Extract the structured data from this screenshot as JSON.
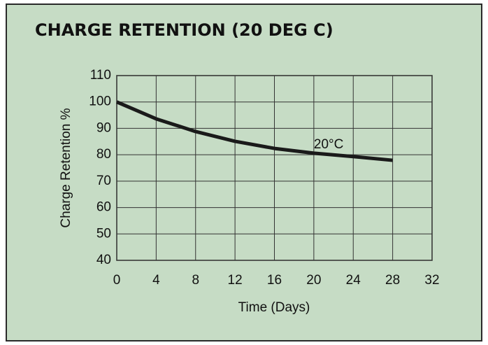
{
  "chart_data": {
    "type": "line",
    "title": "CHARGE RETENTION (20 DEG C)",
    "x_label": "Time (Days)",
    "y_label": "Charge Retention %",
    "x": [
      0,
      4,
      8,
      12,
      16,
      20,
      24,
      28
    ],
    "series": [
      {
        "name": "20°C",
        "color": "#1a1a1a",
        "values": [
          100,
          93.6,
          88.8,
          85.1,
          82.4,
          80.6,
          79.3,
          77.9
        ]
      }
    ],
    "xlim": [
      0,
      32
    ],
    "xticks": [
      0,
      4,
      8,
      12,
      16,
      20,
      24,
      28,
      32
    ],
    "ylim": [
      40,
      110
    ],
    "yticks": [
      40,
      50,
      60,
      70,
      80,
      90,
      100,
      110
    ],
    "grid": true
  }
}
